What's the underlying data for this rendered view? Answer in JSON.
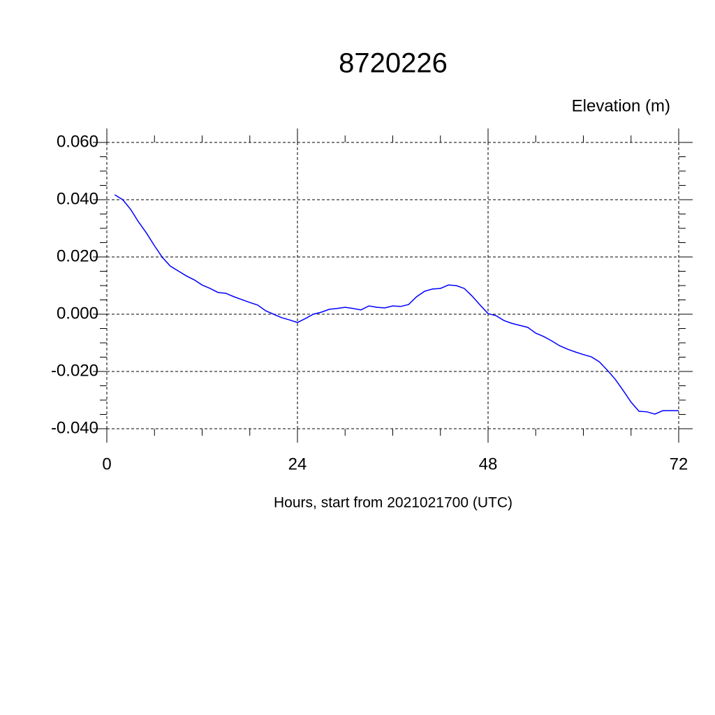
{
  "chart_data": {
    "type": "line",
    "title": "8720226",
    "ylabel": "Elevation (m)",
    "xlabel": "Hours, start from 2021021700 (UTC)",
    "x": [
      1,
      2,
      3,
      4,
      5,
      6,
      7,
      8,
      9,
      10,
      11,
      12,
      13,
      14,
      15,
      16,
      17,
      18,
      19,
      20,
      21,
      22,
      23,
      24,
      25,
      26,
      27,
      28,
      29,
      30,
      31,
      32,
      33,
      34,
      35,
      36,
      37,
      38,
      39,
      40,
      41,
      42,
      43,
      44,
      45,
      46,
      47,
      48,
      49,
      50,
      51,
      52,
      53,
      54,
      55,
      56,
      57,
      58,
      59,
      60,
      61,
      62,
      63,
      64,
      65,
      66,
      67,
      68,
      69,
      70,
      71,
      72
    ],
    "series": [
      {
        "color": "#0000ff",
        "values": [
          0.0417,
          0.04,
          0.0366,
          0.0322,
          0.0283,
          0.0239,
          0.0198,
          0.0168,
          0.0151,
          0.0134,
          0.012,
          0.0102,
          0.009,
          0.0076,
          0.0073,
          0.0061,
          0.0051,
          0.0041,
          0.0032,
          0.0012,
          0.0,
          -0.0012,
          -0.002,
          -0.0029,
          -0.0015,
          0.0,
          0.0007,
          0.0017,
          0.002,
          0.0024,
          0.002,
          0.0015,
          0.0029,
          0.0024,
          0.0022,
          0.0029,
          0.0027,
          0.0034,
          0.0061,
          0.008,
          0.0088,
          0.009,
          0.0102,
          0.01,
          0.009,
          0.0063,
          0.0032,
          0.0002,
          -0.0005,
          -0.0022,
          -0.0032,
          -0.0039,
          -0.0046,
          -0.0066,
          -0.0078,
          -0.0093,
          -0.011,
          -0.0122,
          -0.0132,
          -0.0141,
          -0.0149,
          -0.0166,
          -0.0195,
          -0.0227,
          -0.0266,
          -0.0307,
          -0.0339,
          -0.0341,
          -0.0349,
          -0.0337,
          -0.0337,
          -0.0337
        ]
      }
    ],
    "xlim": [
      0,
      72
    ],
    "xticks": [
      0,
      24,
      48,
      72
    ],
    "ylim": [
      -0.04,
      0.06
    ],
    "yticks": [
      {
        "value": -0.04,
        "label": "-0.040"
      },
      {
        "value": -0.02,
        "label": "-0.020"
      },
      {
        "value": 0,
        "label": "0.000"
      },
      {
        "value": 0.02,
        "label": "0.020"
      },
      {
        "value": 0.04,
        "label": "0.040"
      },
      {
        "value": 0.06,
        "label": "0.060"
      }
    ],
    "grid": true
  }
}
